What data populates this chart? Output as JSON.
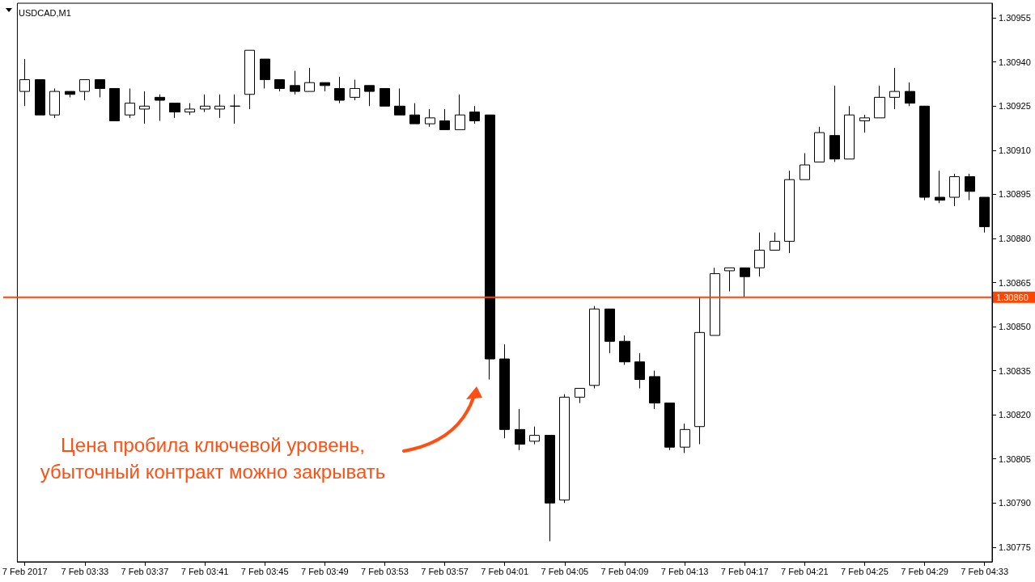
{
  "chart_data": {
    "type": "candlestick",
    "title": "USDCAD,M1",
    "categories": [
      "7 Feb 2017",
      null,
      null,
      null,
      "7 Feb 03:33",
      null,
      null,
      null,
      "7 Feb 03:37",
      null,
      null,
      null,
      "7 Feb 03:41",
      null,
      null,
      null,
      "7 Feb 03:45",
      null,
      null,
      null,
      "7 Feb 03:49",
      null,
      null,
      null,
      "7 Feb 03:53",
      null,
      null,
      null,
      "7 Feb 03:57",
      null,
      null,
      null,
      "7 Feb 04:01",
      null,
      null,
      null,
      "7 Feb 04:05",
      null,
      null,
      null,
      "7 Feb 04:09",
      null,
      null,
      null,
      "7 Feb 04:13",
      null,
      null,
      null,
      "7 Feb 04:17",
      null,
      null,
      null,
      "7 Feb 04:21",
      null,
      null,
      null,
      "7 Feb 04:25",
      null,
      null,
      null,
      "7 Feb 04:29",
      null,
      null,
      null,
      "7 Feb 04:33"
    ],
    "color": "#000000",
    "ohlc": [
      [
        1.3093,
        1.30941,
        1.30925,
        1.30934
      ],
      [
        1.30934,
        1.30934,
        1.30922,
        1.30922
      ],
      [
        1.30922,
        1.30931,
        1.30921,
        1.3093
      ],
      [
        1.3093,
        1.3093,
        1.30928,
        1.30929
      ],
      [
        1.3093,
        1.30934,
        1.30927,
        1.30934
      ],
      [
        1.30934,
        1.30934,
        1.30928,
        1.30931
      ],
      [
        1.30931,
        1.30931,
        1.3092,
        1.3092
      ],
      [
        1.30922,
        1.30931,
        1.30921,
        1.30926
      ],
      [
        1.30924,
        1.3093,
        1.30919,
        1.30925
      ],
      [
        1.30928,
        1.30929,
        1.3092,
        1.30927
      ],
      [
        1.30926,
        1.30926,
        1.30921,
        1.30923
      ],
      [
        1.30923,
        1.30926,
        1.30922,
        1.30924
      ],
      [
        1.30924,
        1.30929,
        1.30923,
        1.30925
      ],
      [
        1.30924,
        1.30929,
        1.30921,
        1.30925
      ],
      [
        1.30925,
        1.30929,
        1.30919,
        1.30925
      ],
      [
        1.30929,
        1.30944,
        1.30924,
        1.30944
      ],
      [
        1.30941,
        1.30941,
        1.30931,
        1.30934
      ],
      [
        1.30934,
        1.30934,
        1.3093,
        1.30931
      ],
      [
        1.30932,
        1.30937,
        1.30929,
        1.3093
      ],
      [
        1.3093,
        1.30938,
        1.3093,
        1.30933
      ],
      [
        1.30933,
        1.30933,
        1.3093,
        1.30932
      ],
      [
        1.30931,
        1.30935,
        1.30926,
        1.30927
      ],
      [
        1.30928,
        1.30934,
        1.30927,
        1.30931
      ],
      [
        1.30932,
        1.30932,
        1.30925,
        1.3093
      ],
      [
        1.30931,
        1.30931,
        1.30925,
        1.30925
      ],
      [
        1.30925,
        1.30931,
        1.30922,
        1.30922
      ],
      [
        1.30922,
        1.30926,
        1.30919,
        1.30919
      ],
      [
        1.30919,
        1.30924,
        1.30918,
        1.30921
      ],
      [
        1.3092,
        1.30924,
        1.30917,
        1.30917
      ],
      [
        1.30917,
        1.30929,
        1.30917,
        1.30922
      ],
      [
        1.30923,
        1.30925,
        1.30919,
        1.3092
      ],
      [
        1.30922,
        1.30922,
        1.30832,
        1.30839
      ],
      [
        1.30839,
        1.30844,
        1.30812,
        1.30815
      ],
      [
        1.30815,
        1.30822,
        1.30808,
        1.3081
      ],
      [
        1.30811,
        1.30816,
        1.3081,
        1.30813
      ],
      [
        1.30813,
        1.30813,
        1.30777,
        1.3079
      ],
      [
        1.30791,
        1.30827,
        1.3079,
        1.30826
      ],
      [
        1.30826,
        1.30829,
        1.30824,
        1.30829
      ],
      [
        1.3083,
        1.30857,
        1.30829,
        1.30856
      ],
      [
        1.30856,
        1.30856,
        1.30841,
        1.30845
      ],
      [
        1.30845,
        1.30847,
        1.30837,
        1.30838
      ],
      [
        1.30838,
        1.30841,
        1.30829,
        1.30832
      ],
      [
        1.30833,
        1.30835,
        1.30822,
        1.30824
      ],
      [
        1.30824,
        1.30824,
        1.30808,
        1.30809
      ],
      [
        1.30809,
        1.30817,
        1.30807,
        1.30815
      ],
      [
        1.30816,
        1.3086,
        1.3081,
        1.30848
      ],
      [
        1.30847,
        1.3087,
        1.30847,
        1.30868
      ],
      [
        1.30869,
        1.3087,
        1.30862,
        1.3087
      ],
      [
        1.3087,
        1.3087,
        1.3086,
        1.30867
      ],
      [
        1.3087,
        1.30882,
        1.30867,
        1.30876
      ],
      [
        1.30876,
        1.30882,
        1.30876,
        1.30879
      ],
      [
        1.30879,
        1.30903,
        1.30875,
        1.309
      ],
      [
        1.309,
        1.30909,
        1.309,
        1.30905
      ],
      [
        1.30906,
        1.30918,
        1.30906,
        1.30916
      ],
      [
        1.30915,
        1.30932,
        1.30906,
        1.30907
      ],
      [
        1.30907,
        1.30925,
        1.30907,
        1.30922
      ],
      [
        1.3092,
        1.30922,
        1.30916,
        1.30921
      ],
      [
        1.30921,
        1.30932,
        1.30921,
        1.30928
      ],
      [
        1.30928,
        1.30938,
        1.30924,
        1.3093
      ],
      [
        1.3093,
        1.30933,
        1.30925,
        1.30926
      ],
      [
        1.30925,
        1.30925,
        1.30893,
        1.30894
      ],
      [
        1.30894,
        1.30903,
        1.30892,
        1.30893
      ],
      [
        1.30894,
        1.30902,
        1.30891,
        1.30901
      ],
      [
        1.30901,
        1.30902,
        1.30893,
        1.30896
      ],
      [
        1.30894,
        1.30894,
        1.30882,
        1.30884
      ]
    ],
    "ylim": [
      1.3077,
      1.3096
    ],
    "yticks": [
      1.30775,
      {
        "value": 1.3079,
        "label": "1.30790"
      },
      1.30805,
      {
        "value": 1.3082,
        "label": "1.30820"
      },
      1.30835,
      {
        "value": 1.3085,
        "label": "1.30850"
      },
      1.30865,
      {
        "value": 1.3088,
        "label": "1.30880"
      },
      1.30895,
      {
        "value": 1.3091,
        "label": "1.30910"
      },
      1.30925,
      {
        "value": 1.3094,
        "label": "1.30940"
      },
      1.30955
    ],
    "ref_lines": [
      {
        "axis": "y",
        "value": 1.3086,
        "label": "1.30860",
        "color": "#ff4500",
        "line_style": "solid"
      }
    ],
    "annotations": [
      "Цена пробила ключевой уровень, убыточный контракт можно закрывать"
    ]
  }
}
